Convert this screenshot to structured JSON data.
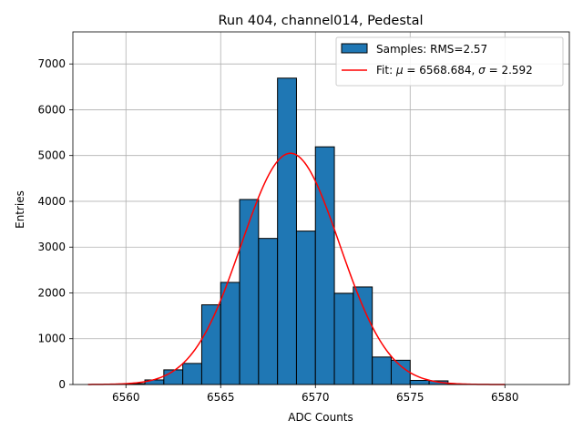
{
  "chart_data": {
    "type": "bar",
    "title": "Run 404, channel014, Pedestal",
    "xlabel": "ADC Counts",
    "ylabel": "Entries",
    "xlim": [
      6557.2,
      6583.4
    ],
    "ylim": [
      0,
      7700
    ],
    "xticks": [
      6560,
      6565,
      6570,
      6575,
      6580
    ],
    "yticks": [
      0,
      1000,
      2000,
      3000,
      4000,
      5000,
      6000,
      7000
    ],
    "grid": true,
    "legend_position": "top-right",
    "bar_color": "#1f77b4",
    "bar_edge_color": "#000000",
    "fit_color": "#ff0000",
    "bins": [
      {
        "left": 6560,
        "right": 6561,
        "count": 20
      },
      {
        "left": 6561,
        "right": 6562,
        "count": 100
      },
      {
        "left": 6562,
        "right": 6563,
        "count": 320
      },
      {
        "left": 6563,
        "right": 6564,
        "count": 460
      },
      {
        "left": 6564,
        "right": 6565,
        "count": 1740
      },
      {
        "left": 6565,
        "right": 6566,
        "count": 2230
      },
      {
        "left": 6566,
        "right": 6567,
        "count": 4040
      },
      {
        "left": 6567,
        "right": 6568,
        "count": 3190
      },
      {
        "left": 6568,
        "right": 6569,
        "count": 6690
      },
      {
        "left": 6569,
        "right": 6570,
        "count": 3350
      },
      {
        "left": 6570,
        "right": 6571,
        "count": 5190
      },
      {
        "left": 6571,
        "right": 6572,
        "count": 1990
      },
      {
        "left": 6572,
        "right": 6573,
        "count": 2130
      },
      {
        "left": 6573,
        "right": 6574,
        "count": 600
      },
      {
        "left": 6574,
        "right": 6575,
        "count": 530
      },
      {
        "left": 6575,
        "right": 6576,
        "count": 90
      },
      {
        "left": 6576,
        "right": 6577,
        "count": 80
      },
      {
        "left": 6577,
        "right": 6578,
        "count": 10
      }
    ],
    "fit": {
      "mu": 6568.684,
      "sigma": 2.592,
      "amplitude": 5050,
      "x_range": [
        6558,
        6580
      ]
    },
    "legend": [
      {
        "kind": "patch",
        "label": "Samples: RMS=2.57"
      },
      {
        "kind": "line",
        "label_prefix": "Fit: ",
        "mu_symbol": "μ",
        "mu_text": " = 6568.684, ",
        "sigma_symbol": "σ",
        "sigma_text": " = 2.592"
      }
    ]
  }
}
